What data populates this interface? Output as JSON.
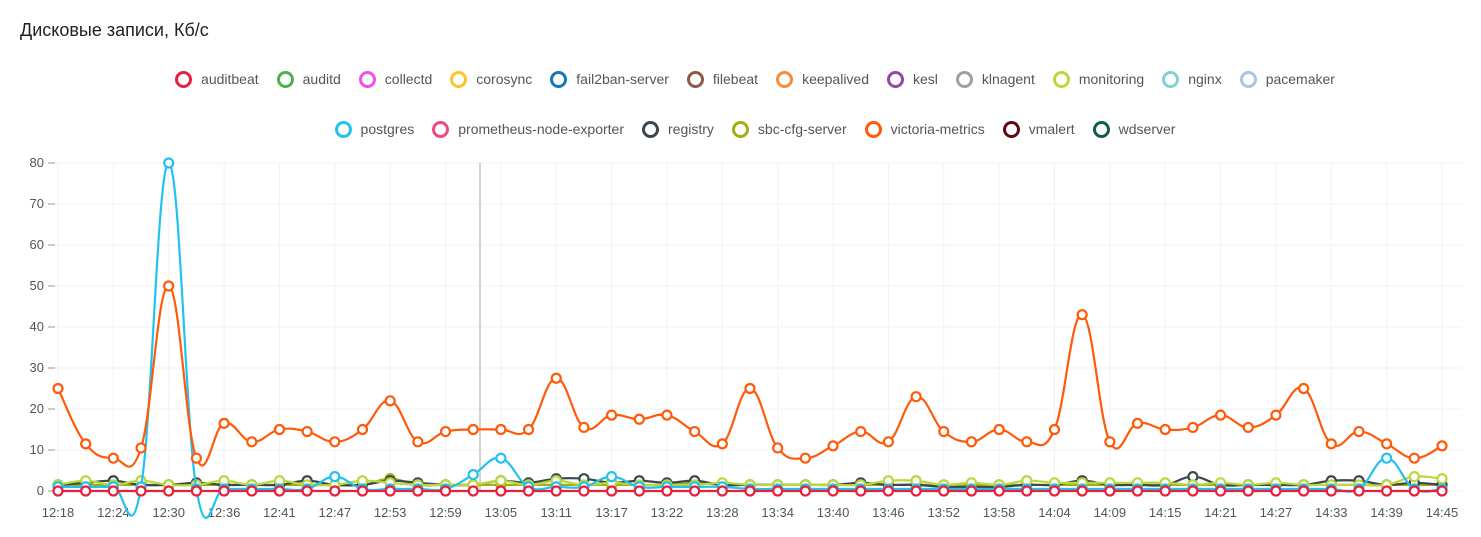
{
  "title": "Дисковые записи, Кб/с",
  "chart_data": {
    "type": "line",
    "title": "Дисковые записи, Кб/с",
    "ylim": [
      0,
      80
    ],
    "yticks": [
      0,
      10,
      20,
      30,
      40,
      50,
      60,
      70,
      80
    ],
    "xticks": [
      "12:18",
      "12:24",
      "12:30",
      "12:36",
      "12:41",
      "12:47",
      "12:53",
      "12:59",
      "13:05",
      "13:11",
      "13:17",
      "13:22",
      "13:28",
      "13:34",
      "13:40",
      "13:46",
      "13:52",
      "13:58",
      "14:04",
      "14:09",
      "14:15",
      "14:21",
      "14:27",
      "14:33",
      "14:39",
      "14:45"
    ],
    "grid": true,
    "legend_position": "top",
    "legend": [
      {
        "name": "auditbeat",
        "color": "#e8203f"
      },
      {
        "name": "auditd",
        "color": "#4cb050"
      },
      {
        "name": "collectd",
        "color": "#f54ee8"
      },
      {
        "name": "corosync",
        "color": "#fcc42a"
      },
      {
        "name": "fail2ban-server",
        "color": "#1576b8"
      },
      {
        "name": "filebeat",
        "color": "#8c5b45"
      },
      {
        "name": "keepalived",
        "color": "#f98b3a"
      },
      {
        "name": "kesl",
        "color": "#9447a8"
      },
      {
        "name": "klnagent",
        "color": "#a0a0a0"
      },
      {
        "name": "monitoring",
        "color": "#b8d93a"
      },
      {
        "name": "nginx",
        "color": "#7fd3cf"
      },
      {
        "name": "pacemaker",
        "color": "#a9c4e4"
      },
      {
        "name": "postgres",
        "color": "#22c2ef"
      },
      {
        "name": "prometheus-node-exporter",
        "color": "#ee4a7b"
      },
      {
        "name": "registry",
        "color": "#3b4650"
      },
      {
        "name": "sbc-cfg-server",
        "color": "#a5ad12"
      },
      {
        "name": "victoria-metrics",
        "color": "#ff5a0a"
      },
      {
        "name": "vmalert",
        "color": "#5c0a0f"
      },
      {
        "name": "wdserver",
        "color": "#115c4f"
      }
    ],
    "series": [
      {
        "name": "sbc-cfg-server",
        "color": "#a5ad12",
        "values": [
          1.5,
          1.5,
          1.5,
          1.5,
          1.5,
          1.5,
          1.5,
          1.5,
          1.5,
          1.5,
          1.5,
          1.5,
          3,
          1.5,
          1.5,
          1.5,
          1.5,
          1.5,
          1.5,
          1.5,
          1.5,
          1.5,
          1.5,
          2,
          1.5,
          1.5,
          1.5,
          1.5,
          1.5,
          1.5,
          1.5,
          1.5,
          1.5,
          1.5,
          1.5,
          1.5,
          1.5,
          1.5,
          1.5,
          1.5,
          1.5,
          1.5,
          1.5,
          1.5,
          1.5,
          1.5,
          1.5,
          1.5,
          1.5,
          1.5,
          1.5
        ]
      },
      {
        "name": "registry",
        "color": "#3b4650",
        "values": [
          1.5,
          2,
          2.5,
          1.5,
          1.5,
          2,
          1.5,
          1.5,
          1.5,
          2.5,
          1.5,
          1.5,
          2.5,
          2,
          1.5,
          1.5,
          2.5,
          2,
          3,
          3,
          2,
          2.5,
          2,
          2.5,
          1.5,
          1.5,
          1.5,
          1.5,
          1.5,
          2,
          1.5,
          1.5,
          1,
          1,
          1,
          1.5,
          1.5,
          2.5,
          1.5,
          1.5,
          1.5,
          3.5,
          1.5,
          1.5,
          1.5,
          1.5,
          2.5,
          2.5,
          1.5,
          2,
          1.5
        ]
      },
      {
        "name": "monitoring",
        "color": "#b8d93a",
        "values": [
          1.5,
          2.5,
          1.5,
          2.5,
          1.5,
          1.5,
          2.5,
          1.5,
          2.5,
          1.5,
          1.5,
          2.5,
          2,
          1.5,
          1.5,
          1.5,
          2.5,
          1.5,
          2.5,
          1.5,
          2,
          1.5,
          1.5,
          1.5,
          2,
          1.5,
          1.5,
          1.5,
          1.5,
          1.5,
          2.5,
          2.5,
          1.5,
          2,
          1.5,
          2.5,
          2,
          2,
          2,
          2,
          2,
          1.5,
          2,
          1.5,
          2,
          1.5,
          1.5,
          1.5,
          1.5,
          3.5,
          3
        ]
      },
      {
        "name": "postgres",
        "color": "#22c2ef",
        "values": [
          1,
          1,
          1,
          1,
          80,
          0.5,
          0.5,
          0.5,
          0.5,
          0.5,
          3.5,
          0.5,
          0.5,
          0.5,
          0.5,
          4,
          8,
          1,
          1,
          1,
          3.5,
          1,
          1,
          1,
          1,
          0.5,
          0.5,
          0.5,
          0.5,
          0.5,
          0.5,
          0.5,
          0.5,
          0.5,
          0.5,
          0.5,
          0.5,
          0.5,
          0.5,
          0.5,
          0.5,
          0.5,
          0.5,
          0.5,
          0.5,
          0.5,
          0.5,
          0.5,
          8,
          0.5,
          0.5
        ]
      },
      {
        "name": "victoria-metrics",
        "color": "#ff5a0a",
        "values": [
          25,
          11.5,
          8,
          10.5,
          50,
          8,
          16.5,
          12,
          15,
          14.5,
          12,
          15,
          22,
          12,
          14.5,
          15,
          15,
          15,
          27.5,
          15.5,
          18.5,
          17.5,
          18.5,
          14.5,
          11.5,
          25,
          10.5,
          8,
          11,
          14.5,
          12,
          23,
          14.5,
          12,
          15,
          12,
          15,
          43,
          12,
          16.5,
          15,
          15.5,
          18.5,
          15.5,
          18.5,
          25,
          11.5,
          14.5,
          11.5,
          8,
          11
        ]
      },
      {
        "name": "auditbeat",
        "color": "#e8203f",
        "values": [
          0,
          0,
          0,
          0,
          0,
          0,
          0,
          0,
          0,
          0,
          0,
          0,
          0,
          0,
          0,
          0,
          0,
          0,
          0,
          0,
          0,
          0,
          0,
          0,
          0,
          0,
          0,
          0,
          0,
          0,
          0,
          0,
          0,
          0,
          0,
          0,
          0,
          0,
          0,
          0,
          0,
          0,
          0,
          0,
          0,
          0,
          0,
          0,
          0,
          0,
          0
        ]
      }
    ]
  }
}
